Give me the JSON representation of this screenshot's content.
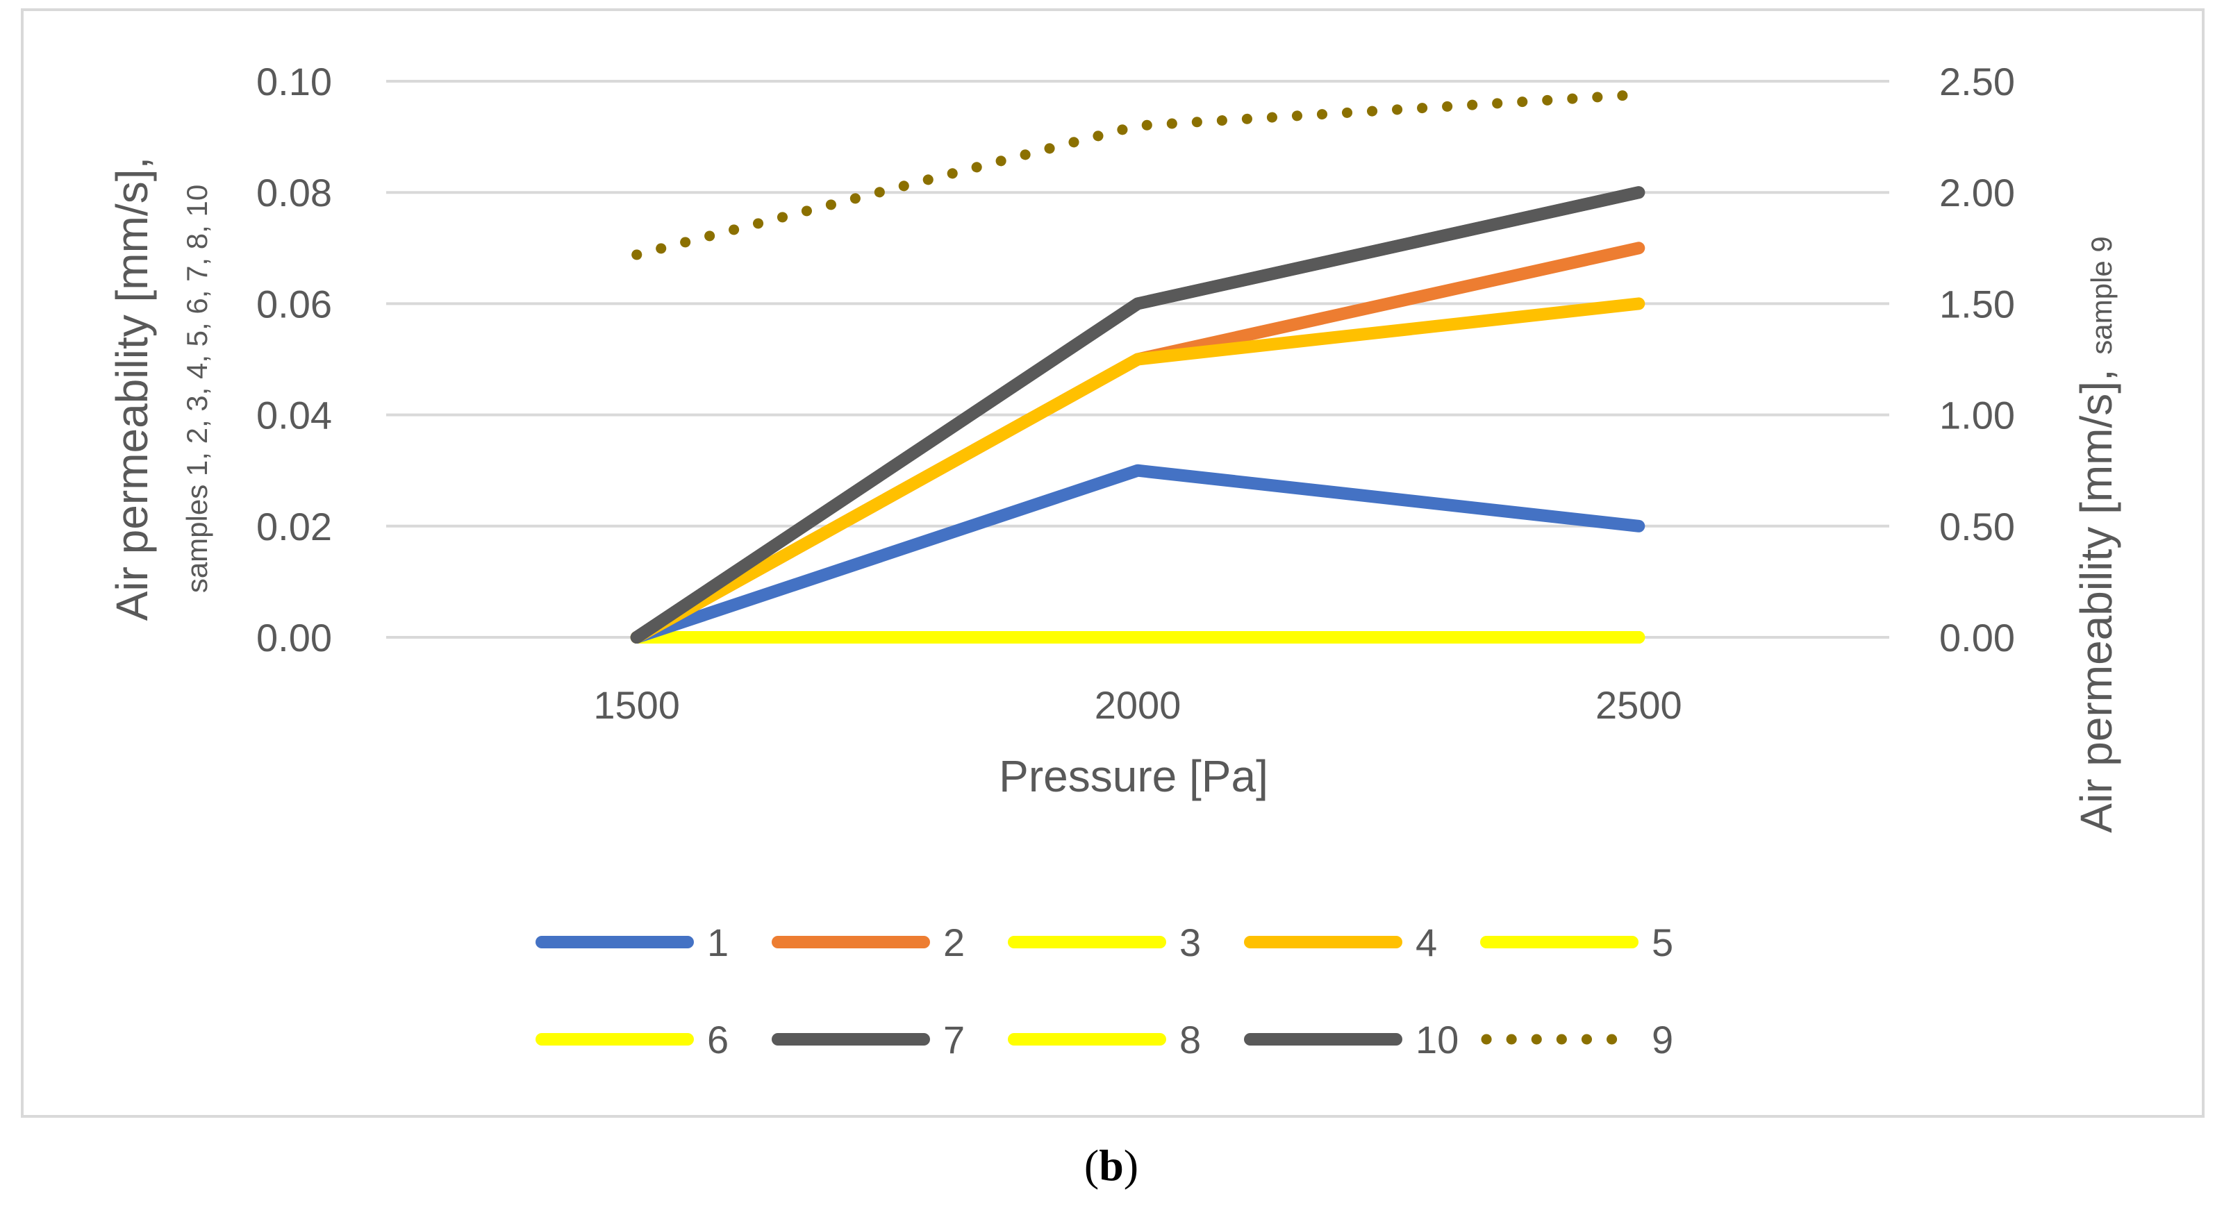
{
  "caption": {
    "open": "(",
    "letter": "b",
    "close": ")"
  },
  "chart_data": {
    "type": "line",
    "title": "",
    "xlabel": "Pressure [Pa]",
    "x": [
      1500,
      2000,
      2500
    ],
    "x_ticks": [
      "1500",
      "2000",
      "2500"
    ],
    "y_left": {
      "label_main": "Air permeability [mm/s],",
      "label_sub": "samples 1, 2, 3, 4, 5, 6, 7, 8, 10",
      "ylim": [
        0,
        0.1
      ],
      "ticks": [
        "0.00",
        "0.02",
        "0.04",
        "0.06",
        "0.08",
        "0.10"
      ],
      "tick_values": [
        0,
        0.02,
        0.04,
        0.06,
        0.08,
        0.1
      ]
    },
    "y_right": {
      "label_main": "Air permeability [mm/s],",
      "label_sub": "sample 9",
      "ylim": [
        0,
        2.5
      ],
      "ticks": [
        "0.00",
        "0.50",
        "1.00",
        "1.50",
        "2.00",
        "2.50"
      ],
      "tick_values": [
        0,
        0.5,
        1.0,
        1.5,
        2.0,
        2.5
      ]
    },
    "grid": true,
    "legend_position": "bottom",
    "series": [
      {
        "name": "3",
        "values": [
          0,
          0,
          0
        ],
        "color": "#FFFF00",
        "style": "solid",
        "axis": "left"
      },
      {
        "name": "5",
        "values": [
          0,
          0,
          0
        ],
        "color": "#FFFF00",
        "style": "solid",
        "axis": "left"
      },
      {
        "name": "6",
        "values": [
          0,
          0,
          0
        ],
        "color": "#FFFF00",
        "style": "solid",
        "axis": "left"
      },
      {
        "name": "8",
        "values": [
          0,
          0,
          0
        ],
        "color": "#FFFF00",
        "style": "solid",
        "axis": "left"
      },
      {
        "name": "1",
        "values": [
          0,
          0.03,
          0.02
        ],
        "color": "#4472C4",
        "style": "solid",
        "axis": "left"
      },
      {
        "name": "2",
        "values": [
          0,
          0.05,
          0.07
        ],
        "color": "#ED7D31",
        "style": "solid",
        "axis": "left"
      },
      {
        "name": "4",
        "values": [
          0,
          0.05,
          0.06
        ],
        "color": "#FFC000",
        "style": "solid",
        "axis": "left"
      },
      {
        "name": "7",
        "values": [
          0,
          0.06,
          0.08
        ],
        "color": "#595959",
        "style": "solid",
        "axis": "left"
      },
      {
        "name": "10",
        "values": [
          0,
          0.06,
          0.08
        ],
        "color": "#595959",
        "style": "solid",
        "axis": "left"
      },
      {
        "name": "9",
        "values": [
          1.72,
          2.3,
          2.44
        ],
        "color": "#8B7000",
        "style": "dotted",
        "axis": "right"
      }
    ],
    "legend_order": [
      "1",
      "2",
      "3",
      "4",
      "5",
      "6",
      "7",
      "8",
      "10",
      "9"
    ]
  }
}
